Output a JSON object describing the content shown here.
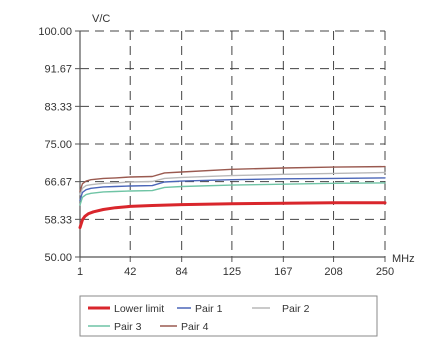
{
  "chart_data": {
    "type": "line",
    "title": "",
    "ylabel": "V/C",
    "xlabel": "MHz",
    "xlim": [
      1,
      250
    ],
    "ylim": [
      50,
      100
    ],
    "yticks": [
      "100.00",
      "91.67",
      "83.33",
      "75.00",
      "66.67",
      "58.33",
      "50.00"
    ],
    "ytick_values": [
      100,
      91.67,
      83.33,
      75,
      66.67,
      58.33,
      50
    ],
    "xticks": [
      "1",
      "42",
      "84",
      "125",
      "167",
      "208",
      "250"
    ],
    "xtick_values": [
      1,
      42,
      84,
      125,
      167,
      208,
      250
    ],
    "grid": true,
    "legend_position": "bottom",
    "series": [
      {
        "name": "Lower limit",
        "legend_label": "Lower limit",
        "color": "#d9262c",
        "x": [
          1,
          3,
          5,
          8,
          12,
          20,
          30,
          42,
          60,
          84,
          125,
          167,
          208,
          250
        ],
        "values": [
          56.5,
          58.2,
          59.0,
          59.6,
          60.0,
          60.5,
          60.9,
          61.2,
          61.4,
          61.6,
          61.8,
          61.9,
          62.0,
          62.0
        ]
      },
      {
        "name": "Pair 1",
        "legend_label": "Pair 1",
        "color": "#4b66b8",
        "x": [
          1,
          3,
          6,
          10,
          20,
          30,
          42,
          60,
          70,
          84,
          125,
          167,
          208,
          250
        ],
        "values": [
          62.5,
          64.3,
          64.9,
          65.2,
          65.5,
          65.6,
          65.7,
          65.8,
          66.6,
          66.8,
          67.1,
          67.3,
          67.4,
          67.5
        ]
      },
      {
        "name": "Pair 2",
        "legend_label": "Pair 2",
        "color": "#b9b9b9",
        "x": [
          1,
          3,
          6,
          10,
          20,
          30,
          42,
          60,
          70,
          84,
          125,
          167,
          208,
          250
        ],
        "values": [
          63.8,
          65.2,
          65.8,
          66.0,
          66.3,
          66.4,
          66.6,
          66.7,
          67.4,
          67.6,
          68.0,
          68.3,
          68.5,
          68.7
        ]
      },
      {
        "name": "Pair 3",
        "legend_label": "Pair 3",
        "color": "#6fc4a5",
        "x": [
          1,
          3,
          6,
          10,
          20,
          30,
          42,
          60,
          70,
          84,
          125,
          167,
          208,
          250
        ],
        "values": [
          61.5,
          63.2,
          63.8,
          64.1,
          64.4,
          64.5,
          64.6,
          64.7,
          65.4,
          65.6,
          65.9,
          66.1,
          66.3,
          66.4
        ]
      },
      {
        "name": "Pair 4",
        "legend_label": "Pair 4",
        "color": "#9a5a50",
        "x": [
          1,
          3,
          6,
          10,
          20,
          30,
          42,
          60,
          70,
          84,
          125,
          167,
          208,
          250
        ],
        "values": [
          64.5,
          66.2,
          66.8,
          67.1,
          67.4,
          67.5,
          67.7,
          67.8,
          68.6,
          68.8,
          69.4,
          69.7,
          69.9,
          70.0
        ]
      }
    ]
  }
}
